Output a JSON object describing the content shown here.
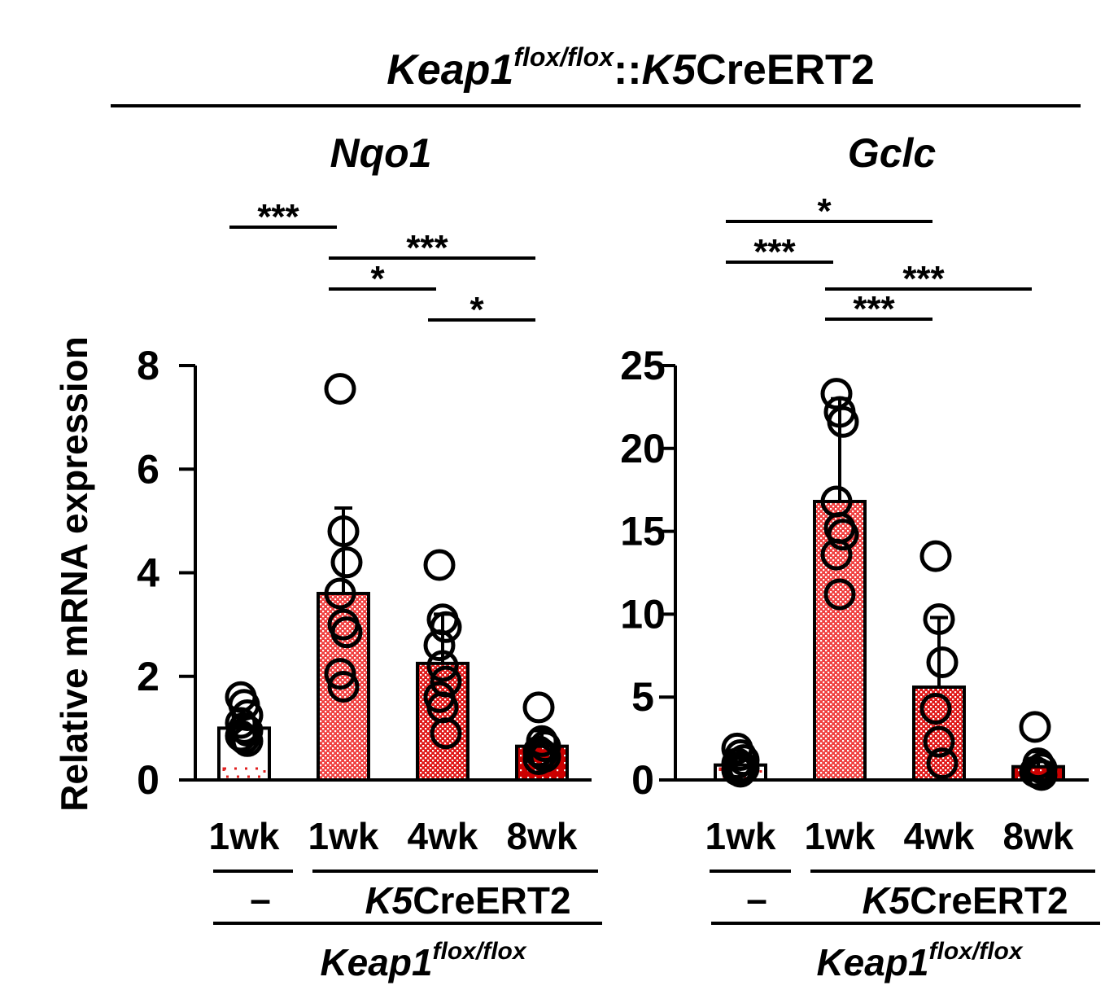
{
  "figure": {
    "title": {
      "gene": "Keap1",
      "allele": "flox/flox",
      "separator": "::",
      "driver_italic": "K5",
      "driver_rest": "CreERT2"
    }
  },
  "chart_data": [
    {
      "type": "bar",
      "title": "Nqo1",
      "ylabel": "Relative mRNA expression",
      "ylim": [
        0,
        8
      ],
      "yticks": [
        "0",
        "2",
        "4",
        "6",
        "8"
      ],
      "categories": [
        "1wk",
        "1wk",
        "4wk",
        "8wk"
      ],
      "values": [
        1.0,
        3.6,
        2.25,
        0.65
      ],
      "error": [
        0.25,
        1.65,
        0.95,
        0.3
      ],
      "points": [
        [
          1.6,
          1.45,
          1.25,
          1.1,
          1.0,
          0.95,
          0.85,
          0.8,
          0.75
        ],
        [
          7.55,
          4.8,
          4.2,
          3.6,
          3.0,
          2.85,
          2.05,
          1.8
        ],
        [
          4.15,
          3.1,
          2.95,
          2.6,
          2.2,
          1.9,
          1.6,
          1.4,
          0.9
        ],
        [
          1.4,
          0.75,
          0.65,
          0.55,
          0.5,
          0.45,
          0.4
        ]
      ],
      "fills": [
        "#ffffff",
        "#f04040",
        "#e01818",
        "#cc0000"
      ],
      "significance": [
        {
          "from": 0,
          "to": 1,
          "label": "***"
        },
        {
          "from": 1,
          "to": 3,
          "label": "***"
        },
        {
          "from": 1,
          "to": 2,
          "label": "*"
        },
        {
          "from": 2,
          "to": 3,
          "label": "*"
        }
      ],
      "group_labels": {
        "control": "–",
        "driver_italic": "K5",
        "driver_rest": "CreERT2",
        "gene": "Keap1",
        "allele": "flox/flox"
      }
    },
    {
      "type": "bar",
      "title": "Gclc",
      "ylabel": "",
      "ylim": [
        0,
        25
      ],
      "yticks": [
        "0",
        "5",
        "10",
        "15",
        "20",
        "25"
      ],
      "categories": [
        "1wk",
        "1wk",
        "4wk",
        "8wk"
      ],
      "values": [
        0.9,
        16.8,
        5.6,
        0.8
      ],
      "error": [
        0.4,
        6.2,
        4.2,
        0.9
      ],
      "points": [
        [
          1.9,
          1.5,
          1.2,
          1.0,
          0.8,
          0.7,
          0.6,
          0.5
        ],
        [
          23.3,
          22.2,
          21.6,
          16.8,
          15.2,
          14.8,
          13.6,
          11.2
        ],
        [
          13.5,
          9.7,
          7.1,
          4.3,
          2.3,
          1.0
        ],
        [
          3.2,
          1.0,
          0.7,
          0.5,
          0.4,
          0.3
        ]
      ],
      "fills": [
        "#ffffff",
        "#f04040",
        "#e01818",
        "#cc0000"
      ],
      "significance": [
        {
          "from": 0,
          "to": 2,
          "label": "*"
        },
        {
          "from": 0,
          "to": 1,
          "label": "***"
        },
        {
          "from": 1,
          "to": 3,
          "label": "***"
        },
        {
          "from": 1,
          "to": 2,
          "label": "***"
        }
      ],
      "group_labels": {
        "control": "–",
        "driver_italic": "K5",
        "driver_rest": "CreERT2",
        "gene": "Keap1",
        "allele": "flox/flox"
      }
    }
  ]
}
